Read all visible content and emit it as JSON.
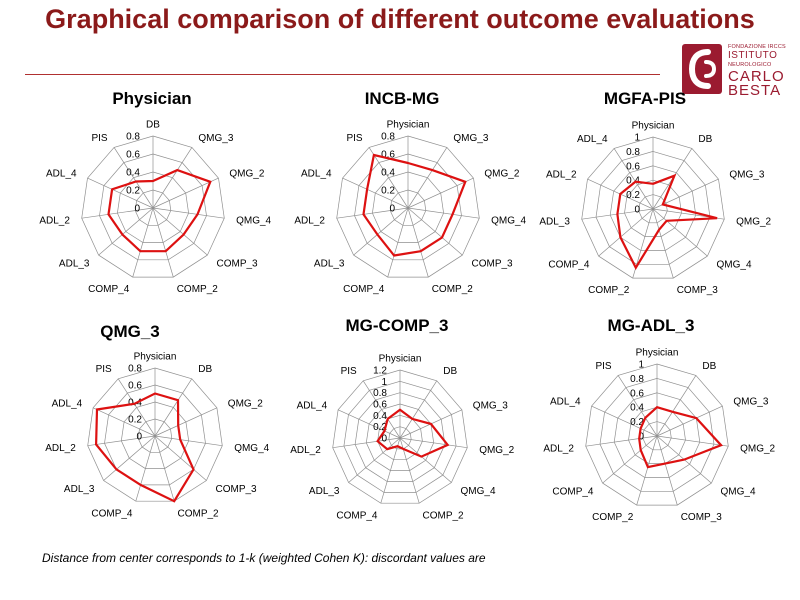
{
  "title": "Graphical comparison of different outcome evaluations",
  "logo": {
    "line1": "FONDAZIONE IRCCS",
    "line2": "ISTITUTO",
    "line3": "NEUROLOGICO",
    "line4": "CARLO",
    "line5": "BESTA"
  },
  "footnote": "Distance from center corresponds to 1-k (weighted Cohen K): discordant values are",
  "colors": {
    "title": "#8b1a1a",
    "series": "#dd1111",
    "grid": "#909090",
    "logo": "#9b1b30"
  },
  "chart_data": [
    {
      "type": "radar",
      "title": "Physician",
      "axes": [
        "DB",
        "QMG_3",
        "QMG_2",
        "QMG_4",
        "COMP_3",
        "COMP_2",
        "COMP_4",
        "ADL_3",
        "ADL_2",
        "ADL_4",
        "PIS"
      ],
      "ticks": [
        "0",
        "0.2",
        "0.4",
        "0.6",
        "0.8"
      ],
      "rmax": 0.8,
      "values": [
        0.3,
        0.5,
        0.7,
        0.5,
        0.45,
        0.5,
        0.5,
        0.45,
        0.5,
        0.5,
        0.35
      ]
    },
    {
      "type": "radar",
      "title": "INCB-MG",
      "axes": [
        "Physician",
        "QMG_3",
        "QMG_2",
        "QMG_4",
        "COMP_3",
        "COMP_2",
        "COMP_4",
        "ADL_3",
        "ADL_2",
        "ADL_4",
        "PIS"
      ],
      "ticks": [
        "0",
        "0.2",
        "0.4",
        "0.6",
        "0.8"
      ],
      "rmax": 0.8,
      "values": [
        0.5,
        0.5,
        0.7,
        0.5,
        0.5,
        0.5,
        0.55,
        0.45,
        0.5,
        0.5,
        0.7
      ]
    },
    {
      "type": "radar",
      "title": "MGFA-PIS",
      "axes": [
        "Physician",
        "DB",
        "QMG_3",
        "QMG_2",
        "QMG_4",
        "COMP_3",
        "COMP_2",
        "COMP_4",
        "ADL_3",
        "ADL_2",
        "ADL_4"
      ],
      "ticks": [
        "0",
        "0.2",
        "0.4",
        "0.6",
        "0.8",
        "1"
      ],
      "rmax": 1,
      "values": [
        0.35,
        0.55,
        0.15,
        0.9,
        0.25,
        0.3,
        0.85,
        0.6,
        0.5,
        0.5,
        0.45
      ]
    },
    {
      "type": "radar",
      "title": "QMG_3",
      "axes": [
        "Physician",
        "DB",
        "QMG_2",
        "QMG_4",
        "COMP_3",
        "COMP_2",
        "COMP_4",
        "ADL_3",
        "ADL_2",
        "ADL_4",
        "PIS"
      ],
      "ticks": [
        "0",
        "0.2",
        "0.4",
        "0.6",
        "0.8"
      ],
      "rmax": 0.8,
      "values": [
        0.5,
        0.5,
        0.3,
        0.3,
        0.6,
        0.8,
        0.6,
        0.6,
        0.7,
        0.75,
        0.45
      ]
    },
    {
      "type": "radar",
      "title": "MG-COMP_3",
      "axes": [
        "Physician",
        "DB",
        "QMG_3",
        "QMG_2",
        "QMG_4",
        "COMP_2",
        "COMP_4",
        "ADL_3",
        "ADL_2",
        "ADL_4",
        "PIS"
      ],
      "ticks": [
        "0",
        "0.2",
        "0.4",
        "0.6",
        "0.8",
        "1",
        "1.2"
      ],
      "rmax": 1.2,
      "values": [
        0.5,
        0.4,
        0.6,
        0.85,
        0.5,
        0.2,
        0.15,
        0.3,
        0.4,
        0.3,
        0.4
      ]
    },
    {
      "type": "radar",
      "title": "MG-ADL_3",
      "axes": [
        "Physician",
        "DB",
        "QMG_3",
        "QMG_2",
        "QMG_4",
        "COMP_3",
        "COMP_2",
        "COMP_4",
        "ADL_2",
        "ADL_4",
        "PIS"
      ],
      "ticks": [
        "0",
        "0.2",
        "0.4",
        "0.6",
        "0.8",
        "1"
      ],
      "rmax": 1,
      "values": [
        0.4,
        0.4,
        0.6,
        0.9,
        0.5,
        0.4,
        0.45,
        0.3,
        0.25,
        0.25,
        0.3
      ]
    }
  ]
}
